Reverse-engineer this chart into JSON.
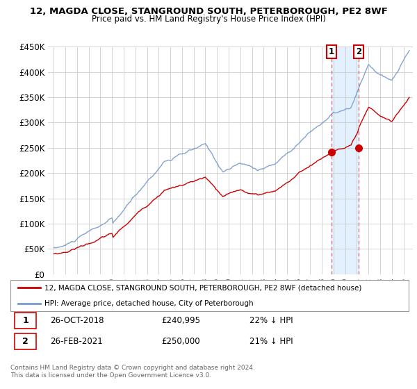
{
  "title": "12, MAGDA CLOSE, STANGROUND SOUTH, PETERBOROUGH, PE2 8WF",
  "subtitle": "Price paid vs. HM Land Registry's House Price Index (HPI)",
  "ylim": [
    0,
    450000
  ],
  "yticks": [
    0,
    50000,
    100000,
    150000,
    200000,
    250000,
    300000,
    350000,
    400000,
    450000
  ],
  "ytick_labels": [
    "£0",
    "£50K",
    "£100K",
    "£150K",
    "£200K",
    "£250K",
    "£300K",
    "£350K",
    "£400K",
    "£450K"
  ],
  "background_color": "#ffffff",
  "grid_color": "#cccccc",
  "hpi_color": "#7799cc",
  "price_color": "#cc0000",
  "sale1_date": "26-OCT-2018",
  "sale1_price": 240995,
  "sale1_hpi_pct": "22% ↓ HPI",
  "sale2_date": "26-FEB-2021",
  "sale2_price": 250000,
  "sale2_hpi_pct": "21% ↓ HPI",
  "vline_color": "#dd6666",
  "shade_color": "#ddeeff",
  "legend_label1": "12, MAGDA CLOSE, STANGROUND SOUTH, PETERBOROUGH, PE2 8WF (detached house)",
  "legend_label2": "HPI: Average price, detached house, City of Peterborough",
  "footnote": "Contains HM Land Registry data © Crown copyright and database right 2024.\nThis data is licensed under the Open Government Licence v3.0.",
  "sale1_x": 2018.82,
  "sale2_x": 2021.15,
  "xmin": 1994.5,
  "xmax": 2025.8
}
